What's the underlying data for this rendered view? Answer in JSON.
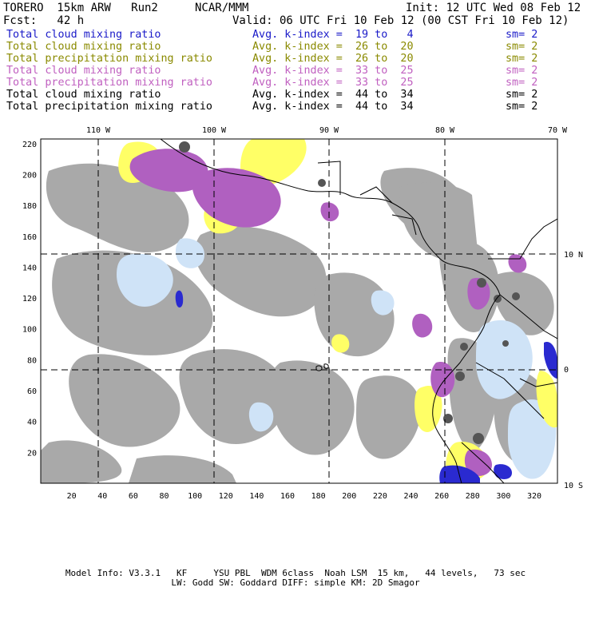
{
  "header": {
    "model": "TORERO  15km ARW   Run2",
    "org": "NCAR/MMM",
    "init": "Init: 12 UTC Wed 08 Feb 12",
    "fcst": "Fcst:   42 h",
    "valid": "Valid: 06 UTC Fri 10 Feb 12 (00 CST Fri 10 Feb 12)"
  },
  "legend": [
    {
      "label": "Total cloud mixing ratio",
      "kindex": "Avg. k-index =  19 to   4",
      "sm": "sm= 2",
      "color": "#1a1ac8"
    },
    {
      "label": "Total cloud mixing ratio",
      "kindex": "Avg. k-index =  26 to  20",
      "sm": "sm= 2",
      "color": "#8a8a00"
    },
    {
      "label": "Total precipitation mixing ratio",
      "kindex": "Avg. k-index =  26 to  20",
      "sm": "sm= 2",
      "color": "#8a8a00"
    },
    {
      "label": "Total cloud mixing ratio",
      "kindex": "Avg. k-index =  33 to  25",
      "sm": "sm= 2",
      "color": "#c060c0"
    },
    {
      "label": "Total precipitation mixing ratio",
      "kindex": "Avg. k-index =  33 to  25",
      "sm": "sm= 2",
      "color": "#c060c0"
    },
    {
      "label": "Total cloud mixing ratio",
      "kindex": "Avg. k-index =  44 to  34",
      "sm": "sm= 2",
      "color": "#000000"
    },
    {
      "label": "Total precipitation mixing ratio",
      "kindex": "Avg. k-index =  44 to  34",
      "sm": "sm= 2",
      "color": "#000000"
    }
  ],
  "map": {
    "lon_labels": [
      "110 W",
      "100 W",
      "90 W",
      "80 W",
      "70 W"
    ],
    "lat_labels": [
      "10 N",
      "0",
      "10 S"
    ],
    "grid_x_labels": [
      "20",
      "40",
      "60",
      "80",
      "100",
      "120",
      "140",
      "160",
      "180",
      "200",
      "220",
      "240",
      "260",
      "280",
      "300",
      "320"
    ],
    "grid_y_labels": [
      "20",
      "40",
      "60",
      "80",
      "100",
      "120",
      "140",
      "160",
      "180",
      "200",
      "220"
    ],
    "colors": {
      "gray": "#a9a9a9",
      "yellow": "#ffff66",
      "purple": "#b060c0",
      "lightblue": "#cfe3f7",
      "blue": "#2a2ad0",
      "darkgray": "#555555"
    }
  },
  "footer": {
    "line1": "Model Info: V3.3.1   KF     YSU PBL  WDM 6class  Noah LSM  15 km,   44 levels,   73 sec",
    "line2": "LW: Godd SW: Goddard DIFF: simple KM: 2D Smagor"
  }
}
